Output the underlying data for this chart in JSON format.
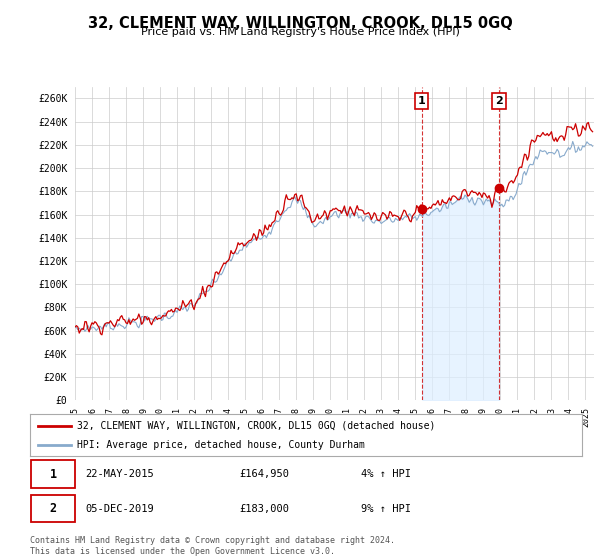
{
  "title": "32, CLEMENT WAY, WILLINGTON, CROOK, DL15 0GQ",
  "subtitle": "Price paid vs. HM Land Registry's House Price Index (HPI)",
  "legend_line1": "32, CLEMENT WAY, WILLINGTON, CROOK, DL15 0GQ (detached house)",
  "legend_line2": "HPI: Average price, detached house, County Durham",
  "annotation1_date": "22-MAY-2015",
  "annotation1_price": "£164,950",
  "annotation1_hpi": "4% ↑ HPI",
  "annotation2_date": "05-DEC-2019",
  "annotation2_price": "£183,000",
  "annotation2_hpi": "9% ↑ HPI",
  "footer": "Contains HM Land Registry data © Crown copyright and database right 2024.\nThis data is licensed under the Open Government Licence v3.0.",
  "sale_color": "#cc0000",
  "hpi_color": "#88aacc",
  "hpi_fill_color": "#ddeeff",
  "background_color": "#ffffff",
  "grid_color": "#cccccc",
  "ylim": [
    0,
    270000
  ],
  "yticks": [
    0,
    20000,
    40000,
    60000,
    80000,
    100000,
    120000,
    140000,
    160000,
    180000,
    200000,
    220000,
    240000,
    260000
  ],
  "sale1_x": 2015.38,
  "sale1_y": 164950,
  "sale2_x": 2019.92,
  "sale2_y": 183000,
  "xlim_start": 1995.0,
  "xlim_end": 2025.5
}
